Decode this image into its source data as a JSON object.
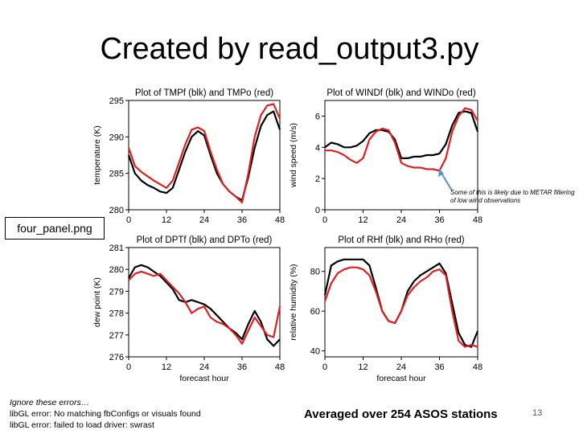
{
  "slide": {
    "title": "Created by read_output3.py",
    "file_label": "four_panel.png",
    "errors": [
      "Ignore these errors…",
      "libGL error: No matching fbConfigs or visuals found",
      "libGL error: failed to load driver: swrast"
    ],
    "summary": "Averaged over 254 ASOS stations",
    "page_number": "13",
    "note": "Some of this is likely due to METAR filtering of low wind observations"
  },
  "colors": {
    "forecast": "#000000",
    "observed": "#e02020",
    "annotation_arrow": "#5b8fd0"
  },
  "chart_data": [
    {
      "type": "line",
      "title": "Plot of TMPf (blk) and TMPo (red)",
      "ylabel": "temperature (K)",
      "xlabel": "",
      "xlim": [
        0,
        48
      ],
      "ylim": [
        280,
        295
      ],
      "xticks": [
        "0",
        "12",
        "24",
        "36",
        "48"
      ],
      "yticks": [
        "280",
        "285",
        "290",
        "295"
      ],
      "x": [
        0,
        2,
        4,
        6,
        8,
        10,
        12,
        14,
        16,
        18,
        20,
        22,
        24,
        26,
        28,
        30,
        32,
        34,
        36,
        38,
        40,
        42,
        44,
        46,
        48
      ],
      "series": [
        {
          "name": "TMPf",
          "values": [
            287.5,
            285.0,
            284.0,
            283.4,
            283.0,
            282.5,
            282.3,
            283.0,
            285.5,
            288.0,
            290.0,
            290.8,
            290.2,
            287.5,
            285.0,
            283.5,
            282.5,
            281.8,
            281.3,
            284.5,
            288.5,
            291.5,
            293.0,
            293.5,
            291.0
          ]
        },
        {
          "name": "TMPo",
          "values": [
            288.5,
            286.0,
            285.2,
            284.6,
            284.0,
            283.5,
            283.0,
            284.0,
            286.5,
            289.0,
            291.0,
            291.3,
            290.8,
            288.0,
            285.5,
            283.5,
            282.5,
            281.8,
            281.0,
            285.0,
            290.0,
            293.0,
            294.3,
            294.5,
            292.5
          ]
        }
      ]
    },
    {
      "type": "line",
      "title": "Plot of WINDf (blk) and WINDo (red)",
      "ylabel": "wind speed (m/s)",
      "xlabel": "",
      "xlim": [
        0,
        48
      ],
      "ylim": [
        0,
        7
      ],
      "xticks": [
        "0",
        "12",
        "24",
        "36",
        "48"
      ],
      "yticks": [
        "0",
        "2",
        "4",
        "6"
      ],
      "x": [
        0,
        2,
        4,
        6,
        8,
        10,
        12,
        14,
        16,
        18,
        20,
        22,
        24,
        26,
        28,
        30,
        32,
        34,
        36,
        38,
        40,
        42,
        44,
        46,
        48
      ],
      "series": [
        {
          "name": "WINDf",
          "values": [
            4.0,
            4.3,
            4.2,
            4.0,
            4.0,
            4.1,
            4.4,
            4.9,
            5.1,
            5.1,
            5.0,
            4.5,
            3.3,
            3.3,
            3.4,
            3.4,
            3.5,
            3.5,
            3.6,
            4.2,
            5.4,
            6.2,
            6.3,
            6.2,
            5.0
          ]
        },
        {
          "name": "WINDo",
          "values": [
            3.8,
            3.8,
            3.7,
            3.5,
            3.2,
            3.0,
            3.3,
            4.5,
            5.0,
            5.2,
            5.1,
            4.3,
            3.0,
            2.8,
            2.7,
            2.7,
            2.6,
            2.6,
            2.5,
            3.3,
            5.0,
            6.0,
            6.5,
            6.4,
            5.7
          ]
        }
      ]
    },
    {
      "type": "line",
      "title": "Plot of DPTf (blk) and DPTo (red)",
      "ylabel": "dew point (K)",
      "xlabel": "forecast hour",
      "xlim": [
        0,
        48
      ],
      "ylim": [
        276,
        281
      ],
      "xticks": [
        "0",
        "12",
        "24",
        "36",
        "48"
      ],
      "yticks": [
        "276",
        "277",
        "278",
        "279",
        "280",
        "281"
      ],
      "x": [
        0,
        2,
        4,
        6,
        8,
        10,
        12,
        14,
        16,
        18,
        20,
        22,
        24,
        26,
        28,
        30,
        32,
        34,
        36,
        38,
        40,
        42,
        44,
        46,
        48
      ],
      "series": [
        {
          "name": "DPTf",
          "values": [
            279.6,
            280.1,
            280.2,
            280.1,
            279.9,
            279.7,
            279.4,
            279.1,
            278.6,
            278.5,
            278.6,
            278.5,
            278.4,
            278.2,
            277.9,
            277.6,
            277.3,
            277.1,
            276.8,
            277.5,
            278.1,
            277.6,
            276.8,
            276.5,
            276.8
          ]
        },
        {
          "name": "DPTo",
          "values": [
            279.5,
            279.8,
            279.9,
            279.8,
            279.7,
            279.8,
            279.5,
            279.2,
            278.9,
            278.5,
            278.0,
            278.2,
            278.3,
            277.8,
            277.6,
            277.5,
            277.3,
            277.0,
            276.6,
            277.2,
            277.8,
            277.4,
            277.0,
            276.9,
            278.3
          ]
        }
      ]
    },
    {
      "type": "line",
      "title": "Plot of RHf (blk) and RHo (red)",
      "ylabel": "relative humidity (%)",
      "xlabel": "forecast hour",
      "xlim": [
        0,
        48
      ],
      "ylim": [
        37,
        92
      ],
      "xticks": [
        "0",
        "12",
        "24",
        "36",
        "48"
      ],
      "yticks": [
        "40",
        "60",
        "80"
      ],
      "x": [
        0,
        2,
        4,
        6,
        8,
        10,
        12,
        14,
        16,
        18,
        20,
        22,
        24,
        26,
        28,
        30,
        32,
        34,
        36,
        38,
        40,
        42,
        44,
        46,
        48
      ],
      "series": [
        {
          "name": "RHf",
          "values": [
            68,
            83,
            85,
            86,
            86,
            86,
            86,
            83,
            72,
            60,
            55,
            54,
            60,
            70,
            75,
            78,
            80,
            82,
            84,
            79,
            64,
            49,
            43,
            42,
            50
          ]
        },
        {
          "name": "RHo",
          "values": [
            65,
            74,
            79,
            81,
            82,
            82,
            81,
            78,
            70,
            60,
            55,
            54,
            60,
            68,
            72,
            75,
            77,
            80,
            81,
            78,
            60,
            45,
            42,
            43,
            42
          ]
        }
      ]
    }
  ]
}
